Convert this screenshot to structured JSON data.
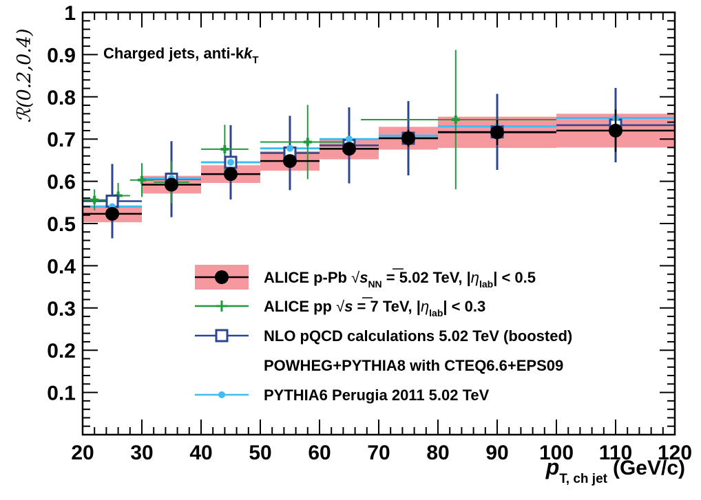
{
  "chart_data": {
    "type": "scatter",
    "title": "",
    "annotation": "Charged jets, anti-k",
    "annotation_sub": "T",
    "xlabel": "p",
    "xlabel_sub": "T, ch jet",
    "xlabel_unit": "(GeV/c)",
    "ylabel": "ℛ(0.2,0.4)",
    "xlim": [
      20,
      120
    ],
    "ylim": [
      0,
      1
    ],
    "x_ticks": [
      20,
      30,
      40,
      50,
      60,
      70,
      80,
      90,
      100,
      110,
      120
    ],
    "y_ticks": [
      0.1,
      0.2,
      0.3,
      0.4,
      0.5,
      0.6,
      0.7,
      0.8,
      0.9,
      1
    ],
    "x_tick_labels": [
      "20",
      "30",
      "40",
      "50",
      "60",
      "70",
      "80",
      "90",
      "100",
      "110",
      "120"
    ],
    "y_tick_labels": [
      "0.1",
      "0.2",
      "0.3",
      "0.4",
      "0.5",
      "0.6",
      "0.7",
      "0.8",
      "0.9",
      "1"
    ],
    "grid": false,
    "legend_position": "bottom-right",
    "series": [
      {
        "key": "alice_ppb",
        "name": "ALICE p-Pb  √s_NN = 5.02 TeV, |η_lab| < 0.5",
        "color": "#000000",
        "band_color": "#f5999e",
        "marker": "filled-circle",
        "points": [
          {
            "x": 25,
            "xlo": 20,
            "xhi": 30,
            "y": 0.523,
            "err": 0,
            "sys": 0.02
          },
          {
            "x": 35,
            "xlo": 30,
            "xhi": 40,
            "y": 0.592,
            "err": 0,
            "sys": 0.021
          },
          {
            "x": 45,
            "xlo": 40,
            "xhi": 50,
            "y": 0.617,
            "err": 0,
            "sys": 0.021
          },
          {
            "x": 55,
            "xlo": 50,
            "xhi": 60,
            "y": 0.648,
            "err": 0,
            "sys": 0.023
          },
          {
            "x": 65,
            "xlo": 60,
            "xhi": 70,
            "y": 0.677,
            "err": 0,
            "sys": 0.025
          },
          {
            "x": 75,
            "xlo": 70,
            "xhi": 80,
            "y": 0.702,
            "err": 0.02,
            "sys": 0.027
          },
          {
            "x": 90,
            "xlo": 80,
            "xhi": 100,
            "y": 0.716,
            "err": 0.03,
            "sys": 0.037
          },
          {
            "x": 110,
            "xlo": 100,
            "xhi": 120,
            "y": 0.72,
            "err": 0.05,
            "sys": 0.04
          }
        ]
      },
      {
        "key": "alice_pp",
        "name": "ALICE pp  √s = 7 TeV, |η_lab| < 0.3",
        "color": "#1f9a3d",
        "marker": "plus",
        "points": [
          {
            "x": 22,
            "xlo": 20,
            "xhi": 24,
            "y": 0.556,
            "err": 0.025
          },
          {
            "x": 26,
            "xlo": 24,
            "xhi": 28,
            "y": 0.566,
            "err": 0.03
          },
          {
            "x": 30,
            "xlo": 28,
            "xhi": 32,
            "y": 0.603,
            "err": 0.04
          },
          {
            "x": 35,
            "xlo": 32,
            "xhi": 38,
            "y": 0.598,
            "err": 0.05
          },
          {
            "x": 44,
            "xlo": 40,
            "xhi": 48,
            "y": 0.676,
            "err": 0.058
          },
          {
            "x": 58,
            "xlo": 50,
            "xhi": 66,
            "y": 0.693,
            "err": 0.088
          },
          {
            "x": 83,
            "xlo": 67,
            "xhi": 100,
            "y": 0.746,
            "err": 0.165
          }
        ]
      },
      {
        "key": "nlo",
        "name": "NLO pQCD calculations 5.02 TeV (boosted)",
        "name_line2": "POWHEG+PYTHIA8 with CTEQ6.6+EPS09",
        "color": "#2c4591",
        "marker": "open-square",
        "points": [
          {
            "x": 25,
            "xlo": 20,
            "xhi": 30,
            "y": 0.553,
            "err": 0.088
          },
          {
            "x": 35,
            "xlo": 30,
            "xhi": 40,
            "y": 0.605,
            "err": 0.09
          },
          {
            "x": 45,
            "xlo": 40,
            "xhi": 50,
            "y": 0.645,
            "err": 0.088
          },
          {
            "x": 55,
            "xlo": 50,
            "xhi": 60,
            "y": 0.667,
            "err": 0.088
          },
          {
            "x": 65,
            "xlo": 60,
            "xhi": 70,
            "y": 0.685,
            "err": 0.09
          },
          {
            "x": 75,
            "xlo": 70,
            "xhi": 80,
            "y": 0.702,
            "err": 0.088
          },
          {
            "x": 90,
            "xlo": 80,
            "xhi": 100,
            "y": 0.717,
            "err": 0.09
          },
          {
            "x": 110,
            "xlo": 100,
            "xhi": 120,
            "y": 0.733,
            "err": 0.088
          }
        ]
      },
      {
        "key": "pythia6",
        "name": "PYTHIA6 Perugia 2011 5.02 TeV",
        "color": "#3fbdf0",
        "marker": "filled-small-circle",
        "points": [
          {
            "x": 25,
            "xlo": 20,
            "xhi": 30,
            "y": 0.54,
            "err": 0
          },
          {
            "x": 35,
            "xlo": 30,
            "xhi": 40,
            "y": 0.607,
            "err": 0
          },
          {
            "x": 45,
            "xlo": 40,
            "xhi": 50,
            "y": 0.645,
            "err": 0
          },
          {
            "x": 55,
            "xlo": 50,
            "xhi": 60,
            "y": 0.678,
            "err": 0
          },
          {
            "x": 65,
            "xlo": 60,
            "xhi": 70,
            "y": 0.7,
            "err": 0
          },
          {
            "x": 75,
            "xlo": 70,
            "xhi": 80,
            "y": 0.708,
            "err": 0
          },
          {
            "x": 90,
            "xlo": 80,
            "xhi": 100,
            "y": 0.73,
            "err": 0
          },
          {
            "x": 110,
            "xlo": 100,
            "xhi": 120,
            "y": 0.75,
            "err": 0
          }
        ]
      }
    ]
  },
  "legend": {
    "l1_a": "ALICE p-Pb  ",
    "l1_s": "s",
    "l1_nn": "NN",
    "l1_b": " = 5.02 TeV, |",
    "l1_eta": "η",
    "l1_lab": "lab",
    "l1_c": "| < 0.5",
    "l2_a": "ALICE pp  ",
    "l2_s": "s",
    "l2_b": " = 7 TeV, |",
    "l2_eta": "η",
    "l2_lab": "lab",
    "l2_c": "| < 0.3",
    "l3": "NLO pQCD calculations 5.02 TeV (boosted)",
    "l4": "POWHEG+PYTHIA8 with CTEQ6.6+EPS09",
    "l5": "PYTHIA6 Perugia 2011 5.02 TeV"
  }
}
